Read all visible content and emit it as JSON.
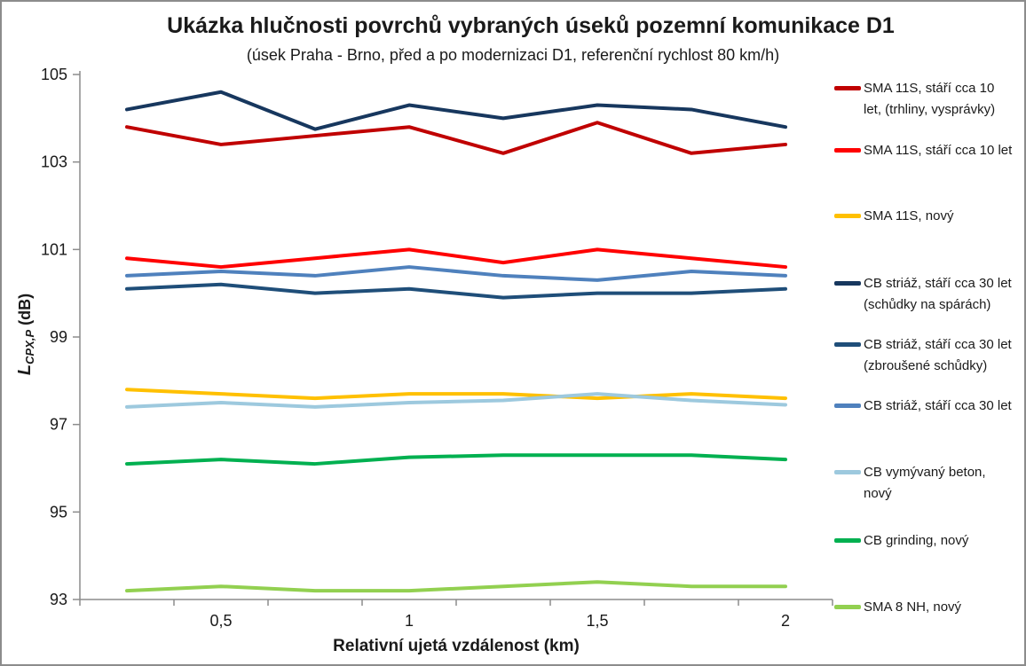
{
  "title": "Ukázka hlučnosti povrchů vybraných úseků pozemní komunikace D1",
  "subtitle": "(úsek Praha - Brno, před a po modernizaci D1, referenční rychlost 80 km/h)",
  "chart_data": {
    "type": "line",
    "x": [
      0.25,
      0.5,
      0.75,
      1.0,
      1.25,
      1.5,
      1.75,
      2.0
    ],
    "x_tick_labels": [
      {
        "x": 0.5,
        "label": "0,5"
      },
      {
        "x": 1.0,
        "label": "1"
      },
      {
        "x": 1.5,
        "label": "1,5"
      },
      {
        "x": 2.0,
        "label": "2"
      }
    ],
    "xlabel": "Relativní ujetá vzdálenost (km)",
    "ylabel": {
      "symbol": "L",
      "subscript": "CPX,P",
      "unit": "(dB)"
    },
    "ylim": [
      93,
      105
    ],
    "y_ticks": [
      105,
      103,
      101,
      99,
      97,
      95,
      93
    ],
    "grid": false,
    "legend_position": "right",
    "axis_color": "#8C8C8C",
    "series": [
      {
        "name": "SMA 11S, stáří cca 10 let, (trhliny, vysprávky)",
        "label_lines": [
          "SMA 11S, stáří cca 10",
          "let, (trhliny, vysprávky)"
        ],
        "color": "#C00000",
        "values": [
          103.8,
          103.4,
          103.6,
          103.8,
          103.2,
          103.9,
          103.2,
          103.4
        ]
      },
      {
        "name": "SMA 11S, stáří cca 10 let",
        "label_lines": [
          "SMA 11S, stáří cca 10 let"
        ],
        "color": "#FF0000",
        "values": [
          100.8,
          100.6,
          100.8,
          101.0,
          100.7,
          101.0,
          100.8,
          100.6
        ]
      },
      {
        "name": "SMA 11S, nový",
        "label_lines": [
          "SMA 11S, nový"
        ],
        "color": "#FFC000",
        "values": [
          97.8,
          97.7,
          97.6,
          97.7,
          97.7,
          97.6,
          97.7,
          97.6
        ]
      },
      {
        "name": "CB striáž, stáří cca 30 let (schůdky na spárách)",
        "label_lines": [
          "CB striáž, stáří cca 30 let",
          "(schůdky na spárách)"
        ],
        "color": "#17375E",
        "values": [
          104.2,
          104.6,
          103.75,
          104.3,
          104.0,
          104.3,
          104.2,
          103.8
        ]
      },
      {
        "name": "CB striáž, stáří cca 30 let (zbroušené schůdky)",
        "label_lines": [
          "CB striáž, stáří cca 30 let",
          "(zbroušené schůdky)"
        ],
        "color": "#1F4E79",
        "values": [
          100.1,
          100.2,
          100.0,
          100.1,
          99.9,
          100.0,
          100.0,
          100.1
        ]
      },
      {
        "name": "CB striáž, stáří cca 30 let",
        "label_lines": [
          "CB striáž, stáří cca 30 let"
        ],
        "color": "#4F81BD",
        "values": [
          100.4,
          100.5,
          100.4,
          100.6,
          100.4,
          100.3,
          100.5,
          100.4
        ]
      },
      {
        "name": "CB vymývaný beton, nový",
        "label_lines": [
          "CB vymývaný beton,",
          "nový"
        ],
        "color": "#9DC9DE",
        "values": [
          97.4,
          97.5,
          97.4,
          97.5,
          97.55,
          97.7,
          97.55,
          97.45
        ]
      },
      {
        "name": "CB grinding, nový",
        "label_lines": [
          "CB grinding, nový"
        ],
        "color": "#00B050",
        "values": [
          96.1,
          96.2,
          96.1,
          96.25,
          96.3,
          96.3,
          96.3,
          96.2
        ]
      },
      {
        "name": "SMA 8 NH, nový",
        "label_lines": [
          "SMA 8 NH, nový"
        ],
        "color": "#92D050",
        "values": [
          93.2,
          93.3,
          93.2,
          93.2,
          93.3,
          93.4,
          93.3,
          93.3
        ]
      }
    ]
  }
}
